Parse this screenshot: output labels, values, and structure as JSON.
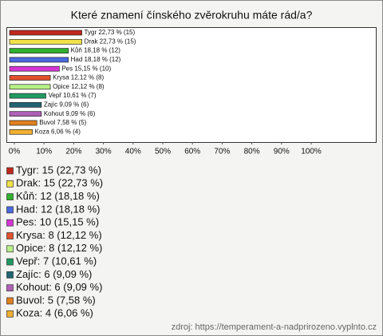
{
  "chart_data": {
    "type": "barh",
    "title": "Které znamení čínského zvěrokruhu máte rád/a?",
    "categories": [
      "Tygr",
      "Drak",
      "Kůň",
      "Had",
      "Pes",
      "Krysa",
      "Opice",
      "Vepř",
      "Zajíc",
      "Kohout",
      "Buvol",
      "Koza"
    ],
    "values": [
      22.73,
      22.73,
      18.18,
      18.18,
      15.15,
      12.12,
      12.12,
      10.61,
      9.09,
      9.09,
      7.58,
      6.06
    ],
    "value_labels": [
      "Tygr 22,73 % (15)",
      "Drak 22,73 % (15)",
      "Kůň 18,18 % (12)",
      "Had 18,18 % (12)",
      "Pes 15,15 % (10)",
      "Krysa 12,12 % (8)",
      "Opice 12,12 % (8)",
      "Vepř 10,61 % (7)",
      "Zajíc 9,09 % (6)",
      "Kohout 9,09 % (6)",
      "Buvol 7,58 % (5)",
      "Koza 6,06 % (4)"
    ],
    "legend_labels": [
      "Tygr: 15 (22,73 %)",
      "Drak: 15 (22,73 %)",
      "Kůň: 12 (18,18 %)",
      "Had: 12 (18,18 %)",
      "Pes: 10 (15,15 %)",
      "Krysa: 8 (12,12 %)",
      "Opice: 8 (12,12 %)",
      "Vepř: 7 (10,61 %)",
      "Zajíc: 6 (9,09 %)",
      "Kohout: 6 (9,09 %)",
      "Buvol: 5 (7,58 %)",
      "Koza: 4 (6,06 %)"
    ],
    "colors": [
      "#c0281c",
      "#f2e24a",
      "#2fb02f",
      "#4a68e0",
      "#d535d5",
      "#e0502c",
      "#b8f088",
      "#1f9a62",
      "#1f6470",
      "#b060b8",
      "#e0801c",
      "#f0b030"
    ],
    "xlim": [
      0,
      100
    ],
    "xticks": [
      {
        "value": 0,
        "label": "0%"
      },
      {
        "value": 10,
        "label": "10%"
      },
      {
        "value": 20,
        "label": "20%"
      },
      {
        "value": 30,
        "label": "30%"
      },
      {
        "value": 40,
        "label": "40%"
      },
      {
        "value": 50,
        "label": "50%"
      },
      {
        "value": 60,
        "label": "60%"
      },
      {
        "value": 70,
        "label": "70%"
      },
      {
        "value": 80,
        "label": "80%"
      },
      {
        "value": 90,
        "label": "90%"
      },
      {
        "value": 100,
        "label": "100%"
      }
    ],
    "source": "zdroj: https://temperament-a-nadprirozeno.vyplnto.cz"
  }
}
